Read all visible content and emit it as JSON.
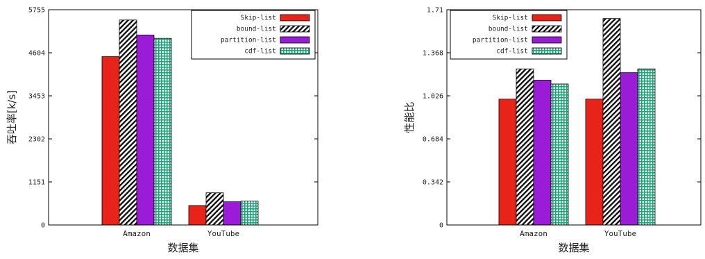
{
  "chart_data": [
    {
      "type": "bar",
      "xlabel": "数据集",
      "ylabel": "吞吐率[k/s]",
      "categories": [
        "Amazon",
        "YouTube"
      ],
      "yticks": [
        "0",
        "1151",
        "2302",
        "3453",
        "4604",
        "5755"
      ],
      "ylim": [
        0,
        5755
      ],
      "legend_position": "top-right",
      "series": [
        {
          "name": "Skip-list",
          "values": [
            4500,
            520
          ],
          "pattern": "solid",
          "color": "#e8231a"
        },
        {
          "name": "bound-list",
          "values": [
            5480,
            860
          ],
          "pattern": "diagonal-hatch",
          "color": "#111111"
        },
        {
          "name": "partition-list",
          "values": [
            5080,
            620
          ],
          "pattern": "solid",
          "color": "#9a1cd6"
        },
        {
          "name": "cdf-list",
          "values": [
            4990,
            640
          ],
          "pattern": "crosshatch",
          "color": "#1fa37a"
        }
      ]
    },
    {
      "type": "bar",
      "xlabel": "数据集",
      "ylabel": "性能比",
      "categories": [
        "Amazon",
        "YouTube"
      ],
      "yticks": [
        "0",
        "0.342",
        "0.684",
        "1.026",
        "1.368",
        "1.71"
      ],
      "ylim": [
        0,
        1.71
      ],
      "legend_position": "top-left",
      "series": [
        {
          "name": "Skip-list",
          "values": [
            1.0,
            1.0
          ],
          "pattern": "solid",
          "color": "#e8231a"
        },
        {
          "name": "bound-list",
          "values": [
            1.24,
            1.64
          ],
          "pattern": "diagonal-hatch",
          "color": "#111111"
        },
        {
          "name": "partition-list",
          "values": [
            1.15,
            1.21
          ],
          "pattern": "solid",
          "color": "#9a1cd6"
        },
        {
          "name": "cdf-list",
          "values": [
            1.12,
            1.24
          ],
          "pattern": "crosshatch",
          "color": "#1fa37a"
        }
      ]
    }
  ]
}
